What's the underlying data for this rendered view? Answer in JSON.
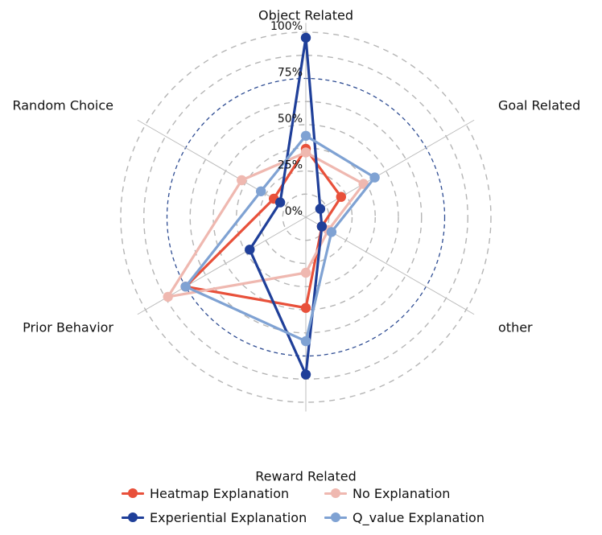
{
  "chart_data": {
    "type": "radar",
    "axes": [
      "Object Related",
      "Goal Related",
      "other",
      "Reward Related",
      "Prior Behavior",
      "Random Choice"
    ],
    "rlim": [
      0,
      100
    ],
    "ticks": [
      0,
      25,
      50,
      75,
      100
    ],
    "tick_labels": [
      "0%",
      "25%",
      "50%",
      "75%",
      "100%"
    ],
    "legend_placement": "bottom",
    "series": [
      {
        "name": "Heatmap Explanation",
        "color": "#e8503a",
        "values": [
          37,
          22,
          10,
          49,
          75,
          20
        ]
      },
      {
        "name": "No Explanation",
        "color": "#efb8b0",
        "values": [
          35,
          36,
          14,
          30,
          86,
          40
        ]
      },
      {
        "name": "Experiential Explanation",
        "color": "#1f3f99",
        "values": [
          97,
          9,
          10,
          85,
          35,
          16
        ]
      },
      {
        "name": "Q_value Explanation",
        "color": "#7fa2d3",
        "values": [
          44,
          43,
          16,
          67,
          75,
          28
        ]
      }
    ]
  }
}
